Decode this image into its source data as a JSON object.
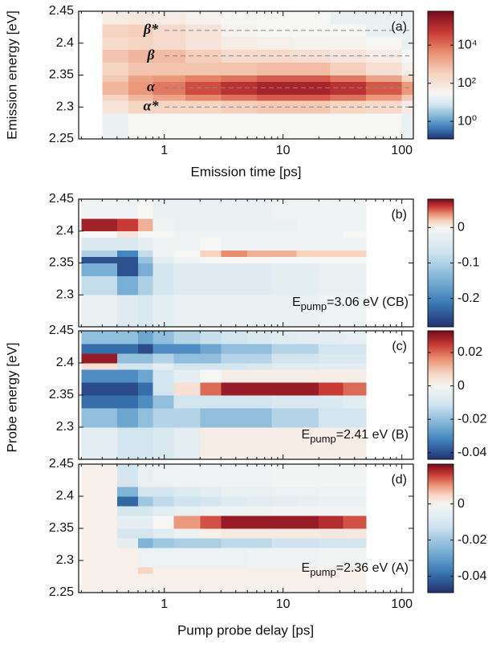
{
  "figure": {
    "xlabel": "Pump probe delay [ps]",
    "ylabel": "Probe energy [eV]"
  },
  "chart_data": [
    {
      "type": "heatmap",
      "panel_label": "(a)",
      "xlabel": "Emission time [ps]",
      "ylabel": "Emission energy [eV]",
      "xscale": "log",
      "xlim": [
        0.19,
        125
      ],
      "ylim": [
        2.25,
        2.45
      ],
      "xticks": [
        1,
        10,
        100
      ],
      "yticks": [
        2.25,
        2.3,
        2.35,
        2.4,
        2.45
      ],
      "x_edges": [
        0.3,
        0.5,
        0.8,
        1.5,
        3,
        6,
        12,
        25,
        50,
        100,
        125
      ],
      "y_edges": [
        2.25,
        2.29,
        2.31,
        2.32,
        2.34,
        2.35,
        2.37,
        2.39,
        2.41,
        2.43,
        2.45
      ],
      "z": [
        [
          20,
          30,
          30,
          30,
          30,
          30,
          30,
          30,
          30,
          20
        ],
        [
          100,
          300,
          300,
          300,
          400,
          500,
          500,
          300,
          200,
          60
        ],
        [
          300,
          1000,
          2000,
          5000,
          10000,
          20000,
          20000,
          10000,
          3000,
          500
        ],
        [
          1000,
          3000,
          8000,
          30000,
          80000,
          150000,
          150000,
          80000,
          20000,
          3000
        ],
        [
          500,
          2000,
          3000,
          6000,
          10000,
          20000,
          20000,
          8000,
          2000,
          300
        ],
        [
          300,
          600,
          600,
          600,
          600,
          800,
          800,
          400,
          150,
          50
        ],
        [
          600,
          1000,
          800,
          400,
          200,
          200,
          150,
          100,
          60,
          30
        ],
        [
          200,
          300,
          200,
          100,
          60,
          50,
          40,
          40,
          30,
          20
        ],
        [
          300,
          400,
          200,
          100,
          40,
          30,
          30,
          30,
          20,
          20
        ],
        [
          60,
          80,
          60,
          40,
          30,
          30,
          30,
          20,
          20,
          20
        ]
      ],
      "colorbar": {
        "scale": "log",
        "clim": [
          0.12,
          600000
        ],
        "center": 30,
        "ticks": [
          {
            "value": 1,
            "label": "10⁰"
          },
          {
            "value": 100,
            "label": "10²"
          },
          {
            "value": 10000,
            "label": "10⁴"
          }
        ]
      },
      "lines": [
        {
          "text": "β*",
          "y": 2.42
        },
        {
          "text": "β",
          "y": 2.38
        },
        {
          "text": "α",
          "y": 2.33
        },
        {
          "text": "α*",
          "y": 2.3
        }
      ]
    },
    {
      "type": "heatmap",
      "panel_label": "(b)",
      "xscale": "log",
      "xticklabels": false,
      "xlim": [
        0.19,
        125
      ],
      "ylim": [
        2.25,
        2.45
      ],
      "xticks": [
        1,
        10,
        100
      ],
      "yticks": [
        2.3,
        2.35,
        2.4,
        2.45
      ],
      "x_edges": [
        0.2,
        0.4,
        0.6,
        0.8,
        1.2,
        2,
        3,
        5,
        8,
        13,
        20,
        32,
        50
      ],
      "y_edges": [
        2.25,
        2.3,
        2.33,
        2.35,
        2.36,
        2.37,
        2.39,
        2.4,
        2.42,
        2.45
      ],
      "z": [
        [
          -0.02,
          -0.04,
          -0.05,
          -0.03,
          -0.02,
          -0.02,
          -0.02,
          -0.02,
          -0.02,
          -0.02,
          -0.01,
          -0.01
        ],
        [
          -0.08,
          -0.15,
          -0.1,
          -0.06,
          -0.04,
          -0.04,
          -0.04,
          -0.04,
          -0.03,
          -0.03,
          -0.02,
          -0.02
        ],
        [
          -0.15,
          -0.25,
          -0.15,
          -0.06,
          -0.04,
          -0.04,
          -0.04,
          -0.04,
          -0.03,
          -0.03,
          -0.02,
          -0.02
        ],
        [
          -0.25,
          -0.25,
          -0.12,
          -0.03,
          -0.01,
          0,
          0,
          0,
          0,
          0,
          0,
          0
        ],
        [
          -0.1,
          -0.2,
          -0.08,
          -0.01,
          0,
          0.02,
          0.04,
          0.03,
          0.03,
          0.02,
          0.02,
          0.02
        ],
        [
          -0.05,
          -0.05,
          -0.03,
          -0.01,
          -0.01,
          0,
          -0.01,
          -0.01,
          -0.01,
          -0.01,
          -0.01,
          -0.01
        ],
        [
          0,
          0.01,
          0,
          0,
          -0.01,
          -0.01,
          -0.01,
          -0.01,
          -0.01,
          -0.01,
          -0.01,
          0
        ],
        [
          0.07,
          0.06,
          0.03,
          -0.01,
          -0.02,
          -0.02,
          -0.02,
          -0.02,
          -0.02,
          -0.01,
          -0.01,
          -0.01
        ],
        [
          -0.01,
          -0.01,
          0,
          -0.02,
          -0.02,
          -0.02,
          -0.02,
          -0.02,
          -0.01,
          -0.01,
          -0.01,
          -0.01
        ]
      ],
      "colorbar": {
        "scale": "linear",
        "clim": [
          -0.28,
          0.08
        ],
        "center": 0,
        "ticks": [
          0,
          -0.1,
          -0.2
        ]
      },
      "annotation": {
        "main": "E",
        "sub": "pump",
        "rest": "=3.06 eV (CB)"
      }
    },
    {
      "type": "heatmap",
      "panel_label": "(c)",
      "xscale": "log",
      "xticklabels": false,
      "xlim": [
        0.19,
        125
      ],
      "ylim": [
        2.25,
        2.45
      ],
      "xticks": [
        1,
        10,
        100
      ],
      "yticks": [
        2.3,
        2.35,
        2.4,
        2.45
      ],
      "x_edges": [
        0.2,
        0.4,
        0.6,
        0.8,
        1.2,
        2,
        3,
        5,
        8,
        13,
        20,
        32,
        50
      ],
      "y_edges": [
        2.25,
        2.3,
        2.33,
        2.35,
        2.37,
        2.39,
        2.4,
        2.415,
        2.43,
        2.45
      ],
      "z": [
        [
          -0.005,
          -0.01,
          -0.01,
          -0.008,
          -0.005,
          0.002,
          0.002,
          0.002,
          0.002,
          0.002,
          0.002,
          0.002
        ],
        [
          -0.02,
          -0.025,
          -0.02,
          -0.015,
          -0.015,
          -0.02,
          -0.02,
          -0.02,
          -0.015,
          -0.015,
          -0.01,
          -0.01
        ],
        [
          -0.035,
          -0.035,
          -0.03,
          -0.02,
          -0.01,
          -0.01,
          -0.01,
          -0.01,
          -0.008,
          -0.008,
          -0.008,
          -0.006
        ],
        [
          -0.04,
          -0.04,
          -0.035,
          -0.01,
          0.005,
          0.02,
          0.03,
          0.03,
          0.03,
          0.03,
          0.025,
          0.02
        ],
        [
          -0.03,
          -0.03,
          -0.025,
          -0.01,
          -0.005,
          0,
          0.002,
          0.002,
          0.002,
          0.002,
          0.002,
          0.002
        ],
        [
          0.005,
          -0.01,
          -0.01,
          -0.005,
          -0.01,
          -0.01,
          -0.01,
          -0.008,
          -0.006,
          -0.006,
          -0.005,
          -0.005
        ],
        [
          0.03,
          -0.02,
          -0.02,
          -0.015,
          -0.02,
          -0.02,
          -0.015,
          -0.015,
          -0.01,
          -0.01,
          -0.008,
          -0.008
        ],
        [
          -0.035,
          -0.035,
          -0.04,
          -0.03,
          -0.03,
          -0.025,
          -0.02,
          -0.02,
          -0.015,
          -0.015,
          -0.01,
          -0.01
        ],
        [
          -0.02,
          -0.02,
          -0.025,
          -0.02,
          -0.015,
          -0.012,
          -0.01,
          -0.008,
          -0.006,
          -0.005,
          -0.005,
          -0.004
        ]
      ],
      "colorbar": {
        "scale": "linear",
        "clim": [
          -0.044,
          0.033
        ],
        "center": 0,
        "ticks": [
          0.02,
          0,
          -0.02,
          -0.04
        ]
      },
      "annotation": {
        "main": "E",
        "sub": "pump",
        "rest": "=2.41 eV (B)"
      }
    },
    {
      "type": "heatmap",
      "panel_label": "(d)",
      "xscale": "log",
      "xlim": [
        0.19,
        125
      ],
      "ylim": [
        2.25,
        2.45
      ],
      "xticks": [
        1,
        10,
        100
      ],
      "yticks": [
        2.25,
        2.3,
        2.35,
        2.4,
        2.45
      ],
      "x_edges": [
        0.2,
        0.4,
        0.6,
        0.8,
        1.2,
        2,
        3,
        5,
        8,
        13,
        20,
        32,
        50
      ],
      "y_edges": [
        2.25,
        2.28,
        2.29,
        2.32,
        2.335,
        2.35,
        2.37,
        2.385,
        2.4,
        2.415,
        2.45
      ],
      "z": [
        [
          0.001,
          0.001,
          0.001,
          0.001,
          0.001,
          0.001,
          0.001,
          0.001,
          0.001,
          0.001,
          0.001,
          0.001
        ],
        [
          0.001,
          0.001,
          0.005,
          0.001,
          0.001,
          0.001,
          0.001,
          0.001,
          0.001,
          0.001,
          0.001,
          0.001
        ],
        [
          0.001,
          0.001,
          -0.003,
          -0.003,
          -0.003,
          -0.003,
          -0.003,
          -0.002,
          -0.002,
          -0.002,
          -0.001,
          -0.001
        ],
        [
          0.001,
          -0.005,
          -0.025,
          -0.02,
          -0.018,
          -0.018,
          -0.015,
          -0.015,
          -0.012,
          -0.012,
          -0.01,
          -0.01
        ],
        [
          0.001,
          -0.01,
          -0.01,
          -0.006,
          -0.003,
          0.001,
          0.002,
          0.002,
          0.002,
          0.002,
          0.002,
          0.002
        ],
        [
          0.001,
          -0.005,
          -0.005,
          0,
          0.01,
          0.015,
          0.02,
          0.02,
          0.02,
          0.02,
          0.018,
          0.015
        ],
        [
          0.001,
          -0.01,
          -0.01,
          -0.006,
          -0.004,
          -0.002,
          -0.002,
          -0.002,
          -0.001,
          -0.001,
          -0.001,
          -0.001
        ],
        [
          0.001,
          -0.04,
          -0.02,
          -0.015,
          -0.012,
          -0.01,
          -0.008,
          -0.006,
          -0.005,
          -0.004,
          -0.003,
          -0.003
        ],
        [
          0.001,
          -0.025,
          -0.01,
          -0.01,
          -0.008,
          -0.006,
          -0.004,
          -0.004,
          -0.003,
          -0.003,
          -0.002,
          -0.002
        ],
        [
          0.001,
          -0.01,
          -0.004,
          -0.003,
          -0.002,
          -0.002,
          -0.002,
          -0.002,
          -0.001,
          -0.001,
          -0.001,
          -0.001
        ]
      ],
      "colorbar": {
        "scale": "linear",
        "clim": [
          -0.049,
          0.022
        ],
        "center": 0,
        "ticks": [
          0,
          -0.02,
          -0.04
        ]
      },
      "annotation": {
        "main": "E",
        "sub": "pump",
        "rest": "=2.36 eV (A)"
      }
    }
  ]
}
